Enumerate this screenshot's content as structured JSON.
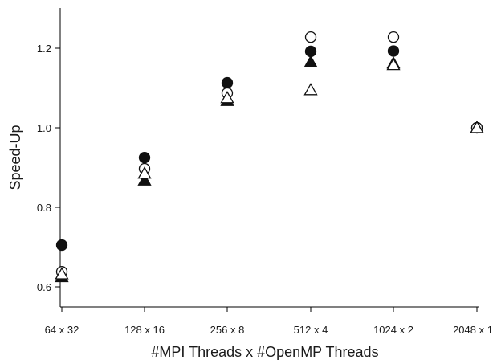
{
  "chart_data": {
    "type": "scatter",
    "xlabel": "#MPI Threads x #OpenMP Threads",
    "ylabel": "Speed-Up",
    "categories": [
      "64 x 32",
      "128 x 16",
      "256 x 8",
      "512 x 4",
      "1024 x 2",
      "2048 x 1"
    ],
    "ylim": [
      0.57,
      1.3
    ],
    "yticks": [
      0.6,
      0.8,
      1.0,
      1.2
    ],
    "ytick_labels": [
      "0.6",
      "0.8",
      "1.0",
      "1.2"
    ],
    "grid": false,
    "legend": "none",
    "series": [
      {
        "marker": "filled-circle",
        "values": [
          0.705,
          0.925,
          1.113,
          1.192,
          1.193,
          1.0
        ]
      },
      {
        "marker": "open-circle",
        "values": [
          0.638,
          0.897,
          1.087,
          1.228,
          1.228,
          1.0
        ]
      },
      {
        "marker": "filled-triangle",
        "values": [
          0.625,
          0.868,
          1.068,
          1.165,
          1.162,
          1.0
        ]
      },
      {
        "marker": "open-triangle",
        "values": [
          0.632,
          0.885,
          1.075,
          1.095,
          1.158,
          1.0
        ]
      }
    ]
  }
}
